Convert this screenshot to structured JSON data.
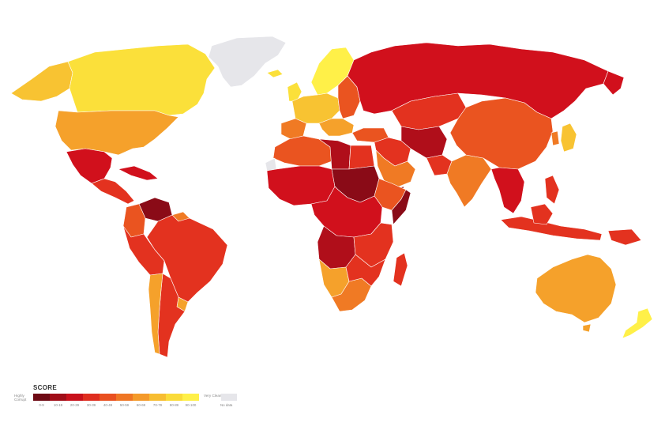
{
  "colors": {
    "darkest": "#8a0b17",
    "dark_red": "#b00e1a",
    "red": "#d1101c",
    "red_orange": "#e3321f",
    "orange_red": "#ea5420",
    "orange": "#f07a24",
    "light_orange": "#f5a12b",
    "amber": "#f8c332",
    "yellow": "#fbe03a",
    "bright_yellow": "#fff048",
    "no_data": "#e6e6ea"
  },
  "legend": {
    "title": "SCORE",
    "left_label": "Highly Corrupt",
    "right_label": "Very Clean",
    "no_data_label": "No data",
    "bins": [
      {
        "label": "0-9",
        "color": "#6e0a14"
      },
      {
        "label": "10-19",
        "color": "#a00d18"
      },
      {
        "label": "20-29",
        "color": "#c8101b"
      },
      {
        "label": "30-39",
        "color": "#df2d1f"
      },
      {
        "label": "40-49",
        "color": "#e95020"
      },
      {
        "label": "50-59",
        "color": "#ef7624"
      },
      {
        "label": "60-69",
        "color": "#f49a2a"
      },
      {
        "label": "70-79",
        "color": "#f7bd31"
      },
      {
        "label": "80-89",
        "color": "#fadb39"
      },
      {
        "label": "90-100",
        "color": "#fff048"
      }
    ]
  }
}
